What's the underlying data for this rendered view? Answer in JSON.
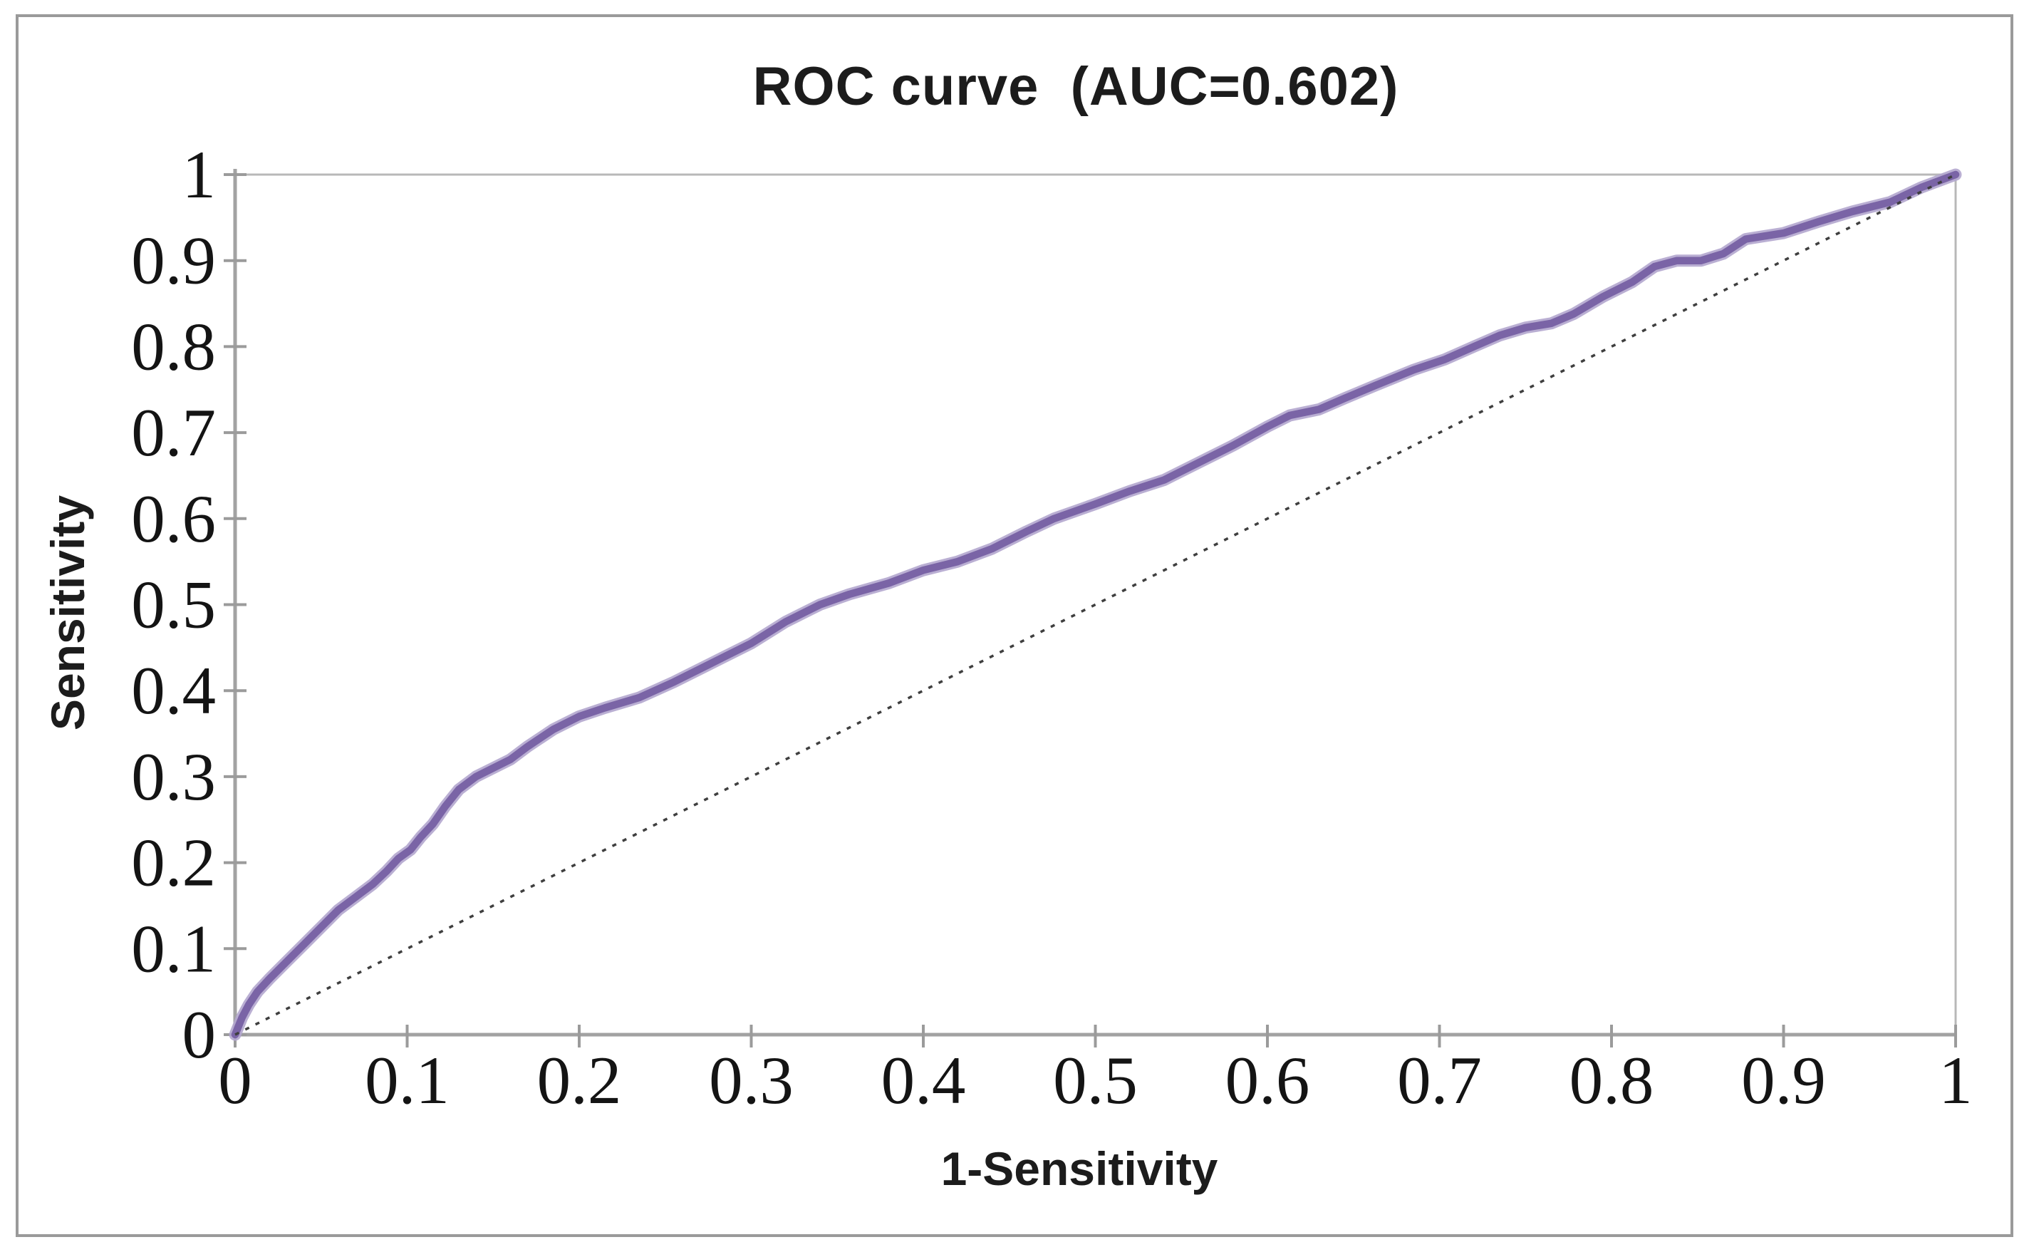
{
  "figure": {
    "background": "#ffffff",
    "border_color": "#9a9a9a"
  },
  "chart_data": {
    "type": "line",
    "title": "ROC curve  (AUC=0.602)",
    "auc": 0.602,
    "xlabel": "1-Sensitivity",
    "ylabel": "Sensitivity",
    "xlim": [
      0,
      1
    ],
    "ylim": [
      0,
      1
    ],
    "grid": false,
    "legend_position": "none",
    "axis_color": "#a2a2a2",
    "frame_color": "#b8b8b8",
    "tick_color": "#9b9b9b",
    "tick_label_color": "#141414",
    "xticks": [
      {
        "value": 0,
        "label": "0"
      },
      {
        "value": 0.1,
        "label": "0.1"
      },
      {
        "value": 0.2,
        "label": "0.2"
      },
      {
        "value": 0.3,
        "label": "0.3"
      },
      {
        "value": 0.4,
        "label": "0.4"
      },
      {
        "value": 0.5,
        "label": "0.5"
      },
      {
        "value": 0.6,
        "label": "0.6"
      },
      {
        "value": 0.7,
        "label": "0.7"
      },
      {
        "value": 0.8,
        "label": "0.8"
      },
      {
        "value": 0.9,
        "label": "0.9"
      },
      {
        "value": 1,
        "label": "1"
      }
    ],
    "yticks": [
      {
        "value": 0,
        "label": "0"
      },
      {
        "value": 0.1,
        "label": "0.1"
      },
      {
        "value": 0.2,
        "label": "0.2"
      },
      {
        "value": 0.3,
        "label": "0.3"
      },
      {
        "value": 0.4,
        "label": "0.4"
      },
      {
        "value": 0.5,
        "label": "0.5"
      },
      {
        "value": 0.6,
        "label": "0.6"
      },
      {
        "value": 0.7,
        "label": "0.7"
      },
      {
        "value": 0.8,
        "label": "0.8"
      },
      {
        "value": 0.9,
        "label": "0.9"
      },
      {
        "value": 1,
        "label": "1"
      }
    ],
    "series": [
      {
        "name": "ROC curve",
        "style": "solid",
        "color": "#7a64a6",
        "halo_color": "#b3a6ce",
        "width": 10.5,
        "halo_width": 17,
        "points": [
          [
            0,
            0
          ],
          [
            0.004,
            0.02
          ],
          [
            0.008,
            0.035
          ],
          [
            0.013,
            0.05
          ],
          [
            0.02,
            0.065
          ],
          [
            0.03,
            0.085
          ],
          [
            0.04,
            0.105
          ],
          [
            0.05,
            0.125
          ],
          [
            0.06,
            0.145
          ],
          [
            0.07,
            0.16
          ],
          [
            0.08,
            0.175
          ],
          [
            0.088,
            0.19
          ],
          [
            0.095,
            0.205
          ],
          [
            0.102,
            0.215
          ],
          [
            0.108,
            0.23
          ],
          [
            0.115,
            0.245
          ],
          [
            0.122,
            0.265
          ],
          [
            0.13,
            0.285
          ],
          [
            0.14,
            0.3
          ],
          [
            0.15,
            0.31
          ],
          [
            0.16,
            0.32
          ],
          [
            0.17,
            0.335
          ],
          [
            0.185,
            0.355
          ],
          [
            0.2,
            0.37
          ],
          [
            0.215,
            0.38
          ],
          [
            0.235,
            0.392
          ],
          [
            0.255,
            0.41
          ],
          [
            0.275,
            0.43
          ],
          [
            0.3,
            0.455
          ],
          [
            0.32,
            0.48
          ],
          [
            0.34,
            0.5
          ],
          [
            0.357,
            0.512
          ],
          [
            0.38,
            0.525
          ],
          [
            0.4,
            0.54
          ],
          [
            0.42,
            0.55
          ],
          [
            0.44,
            0.565
          ],
          [
            0.46,
            0.585
          ],
          [
            0.476,
            0.6
          ],
          [
            0.5,
            0.617
          ],
          [
            0.52,
            0.632
          ],
          [
            0.54,
            0.645
          ],
          [
            0.56,
            0.665
          ],
          [
            0.58,
            0.685
          ],
          [
            0.6,
            0.707
          ],
          [
            0.613,
            0.72
          ],
          [
            0.63,
            0.727
          ],
          [
            0.645,
            0.74
          ],
          [
            0.663,
            0.755
          ],
          [
            0.685,
            0.773
          ],
          [
            0.703,
            0.785
          ],
          [
            0.72,
            0.8
          ],
          [
            0.735,
            0.813
          ],
          [
            0.75,
            0.822
          ],
          [
            0.765,
            0.827
          ],
          [
            0.778,
            0.838
          ],
          [
            0.795,
            0.858
          ],
          [
            0.812,
            0.875
          ],
          [
            0.825,
            0.893
          ],
          [
            0.838,
            0.9
          ],
          [
            0.852,
            0.9
          ],
          [
            0.865,
            0.908
          ],
          [
            0.878,
            0.925
          ],
          [
            0.9,
            0.932
          ],
          [
            0.92,
            0.945
          ],
          [
            0.94,
            0.957
          ],
          [
            0.962,
            0.968
          ],
          [
            0.98,
            0.985
          ],
          [
            1,
            1
          ]
        ]
      },
      {
        "name": "chance diagonal",
        "style": "dashed",
        "color": "#3f3f3f",
        "width": 3.5,
        "dash": [
          6,
          10
        ],
        "points": [
          [
            0,
            0
          ],
          [
            1,
            1
          ]
        ]
      }
    ]
  }
}
